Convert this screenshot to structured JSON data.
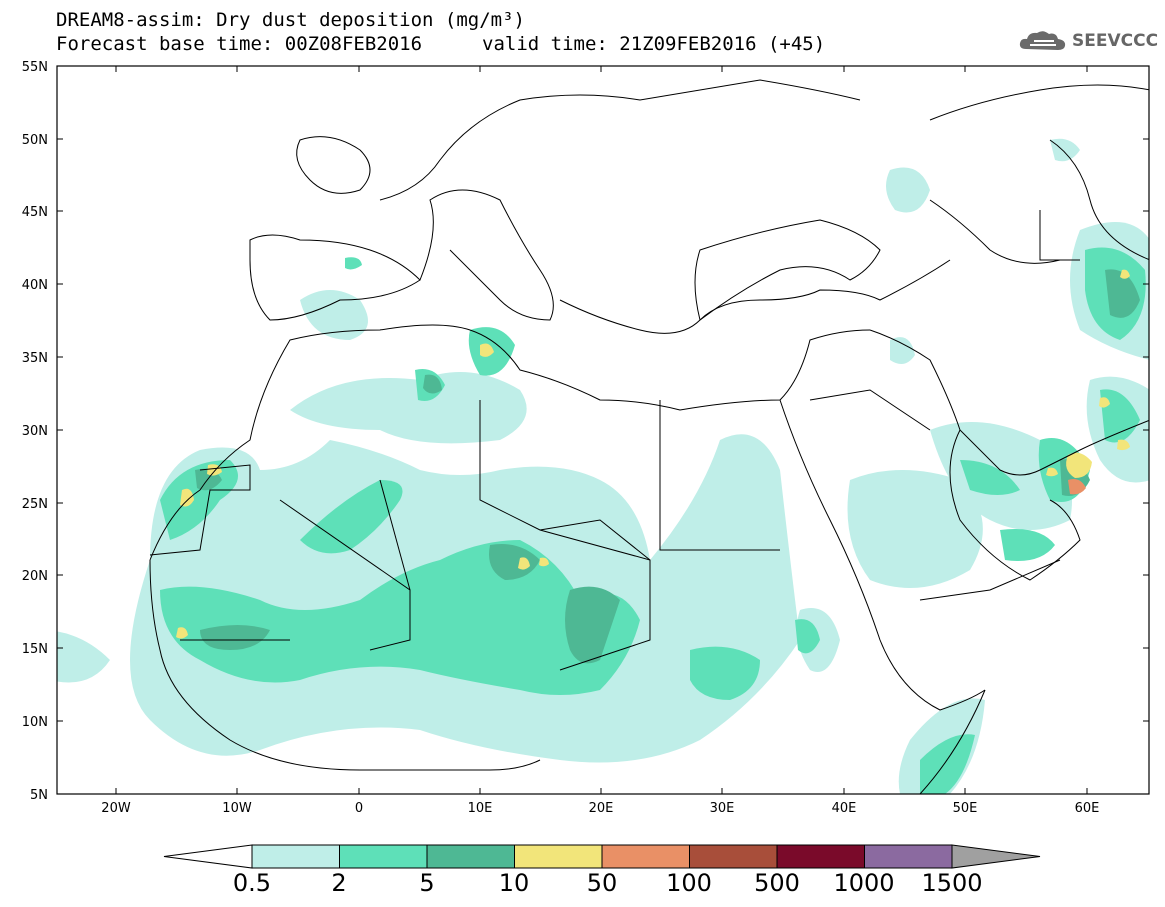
{
  "title": {
    "line1": "DREAM8-assim: Dry dust deposition (mg/m³)",
    "line2": "Forecast base time: 00Z08FEB2016",
    "valid": "valid time: 21Z09FEB2016 (+45)"
  },
  "logo": {
    "text": "SEEVCCC",
    "icon": "cloud-icon"
  },
  "axes": {
    "lon_labels": [
      "20W",
      "10W",
      "0",
      "10E",
      "20E",
      "30E",
      "40E",
      "50E",
      "60E"
    ],
    "lat_labels": [
      "55N",
      "50N",
      "45N",
      "40N",
      "35N",
      "30N",
      "25N",
      "20N",
      "15N",
      "10N",
      "5N"
    ]
  },
  "legend": {
    "labels": [
      "0.5",
      "2",
      "5",
      "10",
      "50",
      "100",
      "500",
      "1000",
      "1500"
    ],
    "colors": [
      "#bfeee8",
      "#5ee0b8",
      "#4eb894",
      "#f2e57a",
      "#e99066",
      "#a84e3a",
      "#7a0a2a",
      "#8b6aa0"
    ],
    "under_color": "#ffffff",
    "over_color": "#a0a0a0"
  }
}
